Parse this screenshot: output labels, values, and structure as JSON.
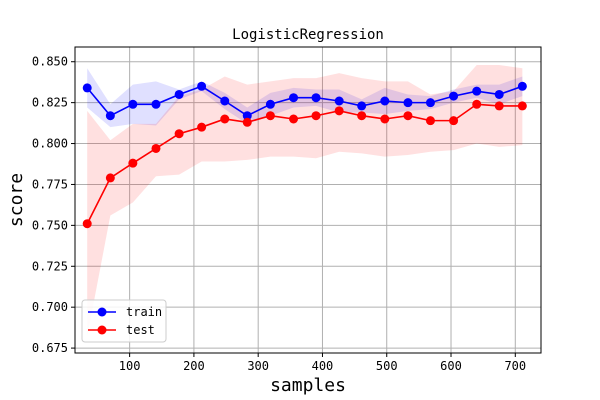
{
  "chart_data": {
    "type": "line",
    "title": "LogisticRegression",
    "xlabel": "samples",
    "ylabel": "score",
    "xlim": [
      15,
      740
    ],
    "ylim": [
      0.672,
      0.859
    ],
    "xticks": [
      100,
      200,
      300,
      400,
      500,
      600,
      700
    ],
    "yticks": [
      0.675,
      0.7,
      0.725,
      0.75,
      0.775,
      0.8,
      0.825,
      0.85
    ],
    "ytick_labels": [
      "0.675",
      "0.700",
      "0.725",
      "0.750",
      "0.775",
      "0.800",
      "0.825",
      "0.850"
    ],
    "grid": true,
    "legend": "lower-left",
    "x": [
      34,
      70,
      105,
      141,
      177,
      212,
      248,
      283,
      319,
      355,
      390,
      426,
      461,
      497,
      533,
      568,
      604,
      640,
      675,
      711
    ],
    "series": [
      {
        "name": "train",
        "color": "#0000ff",
        "fill_color": "#0000ff",
        "values": [
          0.834,
          0.817,
          0.824,
          0.824,
          0.83,
          0.835,
          0.826,
          0.817,
          0.824,
          0.828,
          0.828,
          0.826,
          0.823,
          0.826,
          0.825,
          0.825,
          0.829,
          0.832,
          0.83,
          0.835
        ],
        "upper": [
          0.846,
          0.824,
          0.836,
          0.838,
          0.833,
          0.838,
          0.831,
          0.822,
          0.831,
          0.834,
          0.833,
          0.833,
          0.827,
          0.834,
          0.83,
          0.829,
          0.833,
          0.836,
          0.836,
          0.841
        ],
        "lower": [
          0.822,
          0.81,
          0.812,
          0.811,
          0.827,
          0.832,
          0.821,
          0.812,
          0.817,
          0.822,
          0.823,
          0.819,
          0.819,
          0.818,
          0.82,
          0.821,
          0.825,
          0.828,
          0.824,
          0.829
        ]
      },
      {
        "name": "test",
        "color": "#ff0000",
        "fill_color": "#ff0000",
        "values": [
          0.751,
          0.779,
          0.788,
          0.797,
          0.806,
          0.81,
          0.815,
          0.813,
          0.817,
          0.815,
          0.817,
          0.82,
          0.817,
          0.815,
          0.817,
          0.814,
          0.814,
          0.824,
          0.823,
          0.823
        ],
        "upper": [
          0.82,
          0.802,
          0.812,
          0.812,
          0.829,
          0.833,
          0.841,
          0.836,
          0.838,
          0.84,
          0.84,
          0.843,
          0.84,
          0.838,
          0.838,
          0.83,
          0.832,
          0.848,
          0.848,
          0.846
        ],
        "lower": [
          0.682,
          0.756,
          0.764,
          0.78,
          0.781,
          0.789,
          0.789,
          0.79,
          0.792,
          0.792,
          0.791,
          0.795,
          0.794,
          0.792,
          0.793,
          0.795,
          0.796,
          0.8,
          0.798,
          0.799
        ]
      }
    ]
  }
}
